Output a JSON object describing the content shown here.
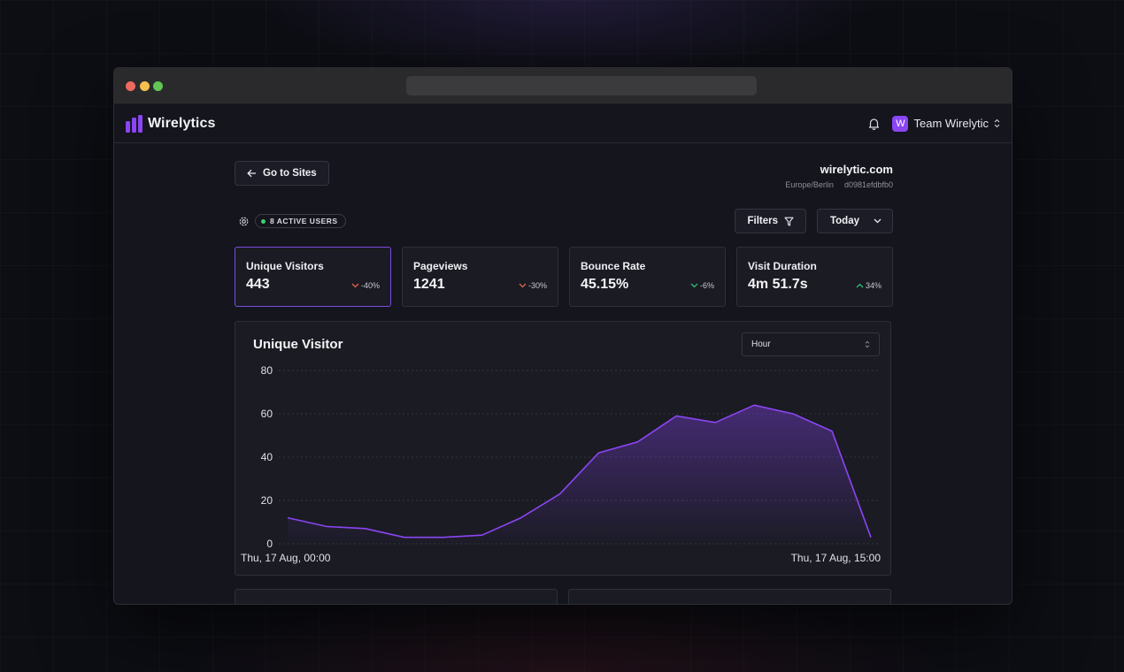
{
  "app": {
    "name": "Wirelytics",
    "team_initial": "W",
    "team_name": "Team Wirelytic"
  },
  "toolbar": {
    "back_label": "Go to Sites",
    "site_name": "wirelytic.com",
    "timezone": "Europe/Berlin",
    "site_id": "d0981efdbfb0",
    "active_users": "8 ACTIVE USERS",
    "filters_label": "Filters",
    "range_label": "Today"
  },
  "stats": [
    {
      "title": "Unique Visitors",
      "value": "443",
      "change": "-40%",
      "trend": "down",
      "color": "#e5624f"
    },
    {
      "title": "Pageviews",
      "value": "1241",
      "change": "-30%",
      "trend": "down",
      "color": "#e5624f"
    },
    {
      "title": "Bounce Rate",
      "value": "45.15%",
      "change": "-6%",
      "trend": "down",
      "color": "#2fbf71"
    },
    {
      "title": "Visit Duration",
      "value": "4m 51.7s",
      "change": "34%",
      "trend": "up",
      "color": "#2fbf71"
    }
  ],
  "chart": {
    "title": "Unique Visitor",
    "interval": "Hour",
    "x_start_label": "Thu, 17 Aug, 00:00",
    "x_end_label": "Thu, 17 Aug, 15:00"
  },
  "chart_data": {
    "type": "area",
    "x": [
      "00:00",
      "01:00",
      "02:00",
      "03:00",
      "04:00",
      "05:00",
      "06:00",
      "07:00",
      "08:00",
      "09:00",
      "10:00",
      "11:00",
      "12:00",
      "13:00",
      "14:00",
      "15:00"
    ],
    "values": [
      12,
      8,
      7,
      3,
      3,
      4,
      12,
      23,
      42,
      47,
      59,
      56,
      64,
      60,
      52,
      3
    ],
    "y_ticks": [
      0,
      20,
      40,
      60,
      80
    ],
    "ylim": [
      0,
      80
    ],
    "grid": true,
    "color": "#8b45f2"
  }
}
